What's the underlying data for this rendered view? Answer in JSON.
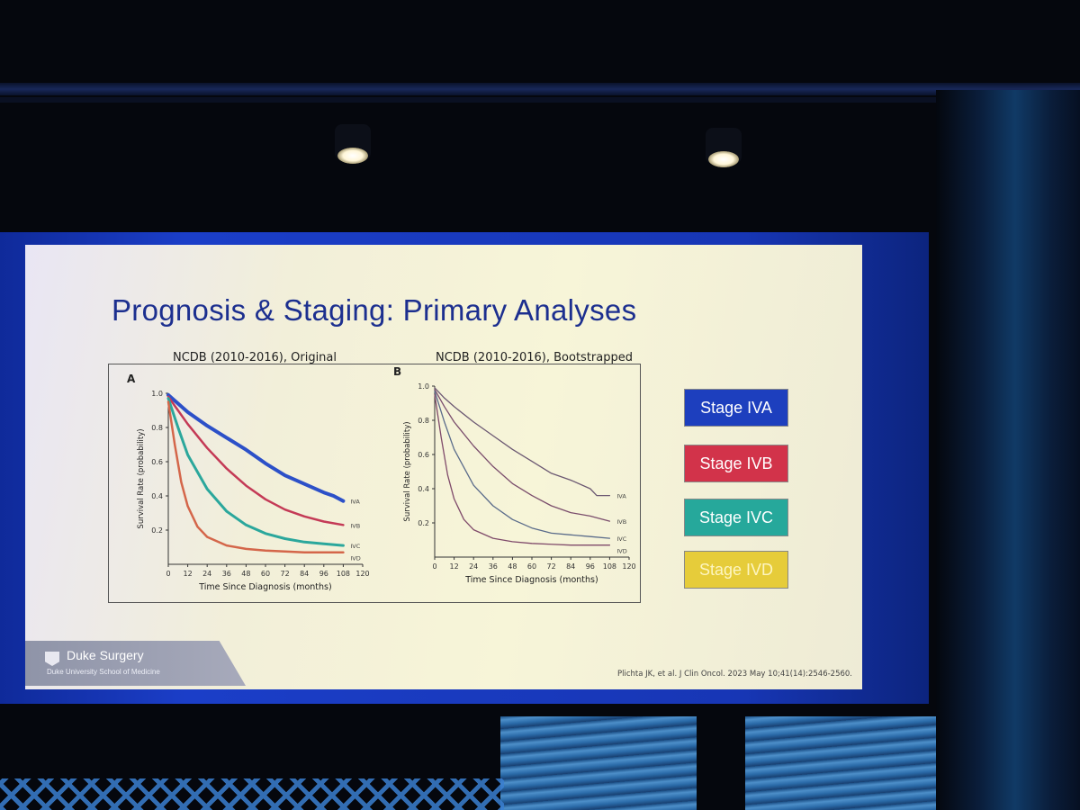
{
  "slide": {
    "title": "Prognosis & Staging: Primary Analyses",
    "citation": "Plichta JK, et al. J Clin Oncol. 2023 May 10;41(14):2546-2560.",
    "logo": {
      "name": "Duke Surgery",
      "subtitle": "Duke University School of Medicine"
    },
    "legend": [
      {
        "label": "Stage IVA",
        "bg": "#1d3fbe",
        "fg": "#ffffff"
      },
      {
        "label": "Stage IVB",
        "bg": "#d2334a",
        "fg": "#ffffff"
      },
      {
        "label": "Stage IVC",
        "bg": "#26a89b",
        "fg": "#ffffff"
      },
      {
        "label": "Stage IVD",
        "bg": "#e6cc3a",
        "fg": "#fdf5c0"
      }
    ]
  },
  "chart_data": [
    {
      "type": "line",
      "panel": "A",
      "title": "NCDB (2010-2016), Original",
      "xlabel": "Time Since Diagnosis (months)",
      "ylabel": "Survival Rate (probability)",
      "xlim": [
        0,
        120
      ],
      "ylim": [
        0,
        1.0
      ],
      "xticks": [
        0,
        12,
        24,
        36,
        48,
        60,
        72,
        84,
        96,
        108,
        120
      ],
      "yticks": [
        0.2,
        0.4,
        0.6,
        0.8,
        1.0
      ],
      "series": [
        {
          "name": "IVA",
          "color": "#2c50c8",
          "width": 4,
          "x": [
            0,
            6,
            12,
            24,
            36,
            48,
            60,
            72,
            84,
            96,
            102,
            108
          ],
          "y": [
            0.99,
            0.94,
            0.89,
            0.81,
            0.74,
            0.67,
            0.59,
            0.52,
            0.47,
            0.42,
            0.4,
            0.37
          ]
        },
        {
          "name": "IVB",
          "color": "#c43a56",
          "width": 2.5,
          "x": [
            0,
            6,
            12,
            24,
            36,
            48,
            60,
            72,
            84,
            96,
            108
          ],
          "y": [
            0.98,
            0.9,
            0.82,
            0.68,
            0.56,
            0.46,
            0.38,
            0.32,
            0.28,
            0.25,
            0.23
          ]
        },
        {
          "name": "IVC",
          "color": "#2ba79c",
          "width": 3,
          "x": [
            0,
            6,
            12,
            24,
            36,
            48,
            60,
            72,
            84,
            96,
            108
          ],
          "y": [
            0.97,
            0.8,
            0.64,
            0.44,
            0.31,
            0.23,
            0.18,
            0.15,
            0.13,
            0.12,
            0.11
          ]
        },
        {
          "name": "IVD",
          "color": "#d4664a",
          "width": 2.5,
          "x": [
            0,
            4,
            8,
            12,
            18,
            24,
            36,
            48,
            60,
            72,
            84,
            96,
            108
          ],
          "y": [
            0.95,
            0.7,
            0.48,
            0.34,
            0.22,
            0.16,
            0.11,
            0.09,
            0.08,
            0.075,
            0.07,
            0.07,
            0.07
          ]
        }
      ]
    },
    {
      "type": "line",
      "panel": "B",
      "title": "NCDB (2010-2016), Bootstrapped",
      "xlabel": "Time Since Diagnosis (months)",
      "ylabel": "Survival Rate (probability)",
      "xlim": [
        0,
        120
      ],
      "ylim": [
        0,
        1.0
      ],
      "xticks": [
        0,
        12,
        24,
        36,
        48,
        60,
        72,
        84,
        96,
        108,
        120
      ],
      "yticks": [
        0.2,
        0.4,
        0.6,
        0.8,
        1.0
      ],
      "series": [
        {
          "name": "IVA",
          "color": "#6b5872",
          "width": 1.3,
          "x": [
            0,
            6,
            12,
            24,
            36,
            48,
            60,
            72,
            84,
            96,
            100,
            108
          ],
          "y": [
            0.99,
            0.93,
            0.88,
            0.79,
            0.71,
            0.63,
            0.56,
            0.49,
            0.45,
            0.4,
            0.36,
            0.36
          ]
        },
        {
          "name": "IVB",
          "color": "#7a4d6c",
          "width": 1.3,
          "x": [
            0,
            6,
            12,
            24,
            36,
            48,
            60,
            72,
            84,
            96,
            108
          ],
          "y": [
            0.98,
            0.88,
            0.79,
            0.65,
            0.53,
            0.43,
            0.36,
            0.3,
            0.26,
            0.24,
            0.21
          ]
        },
        {
          "name": "IVC",
          "color": "#5a6b8a",
          "width": 1.3,
          "x": [
            0,
            6,
            12,
            24,
            36,
            48,
            60,
            72,
            84,
            96,
            108
          ],
          "y": [
            0.97,
            0.79,
            0.63,
            0.42,
            0.3,
            0.22,
            0.17,
            0.14,
            0.13,
            0.12,
            0.11
          ]
        },
        {
          "name": "IVD",
          "color": "#7f4a6a",
          "width": 1.3,
          "x": [
            0,
            4,
            8,
            12,
            18,
            24,
            36,
            48,
            60,
            72,
            84,
            96,
            108
          ],
          "y": [
            0.95,
            0.7,
            0.48,
            0.34,
            0.22,
            0.16,
            0.11,
            0.09,
            0.08,
            0.075,
            0.07,
            0.07,
            0.07
          ]
        }
      ]
    }
  ]
}
